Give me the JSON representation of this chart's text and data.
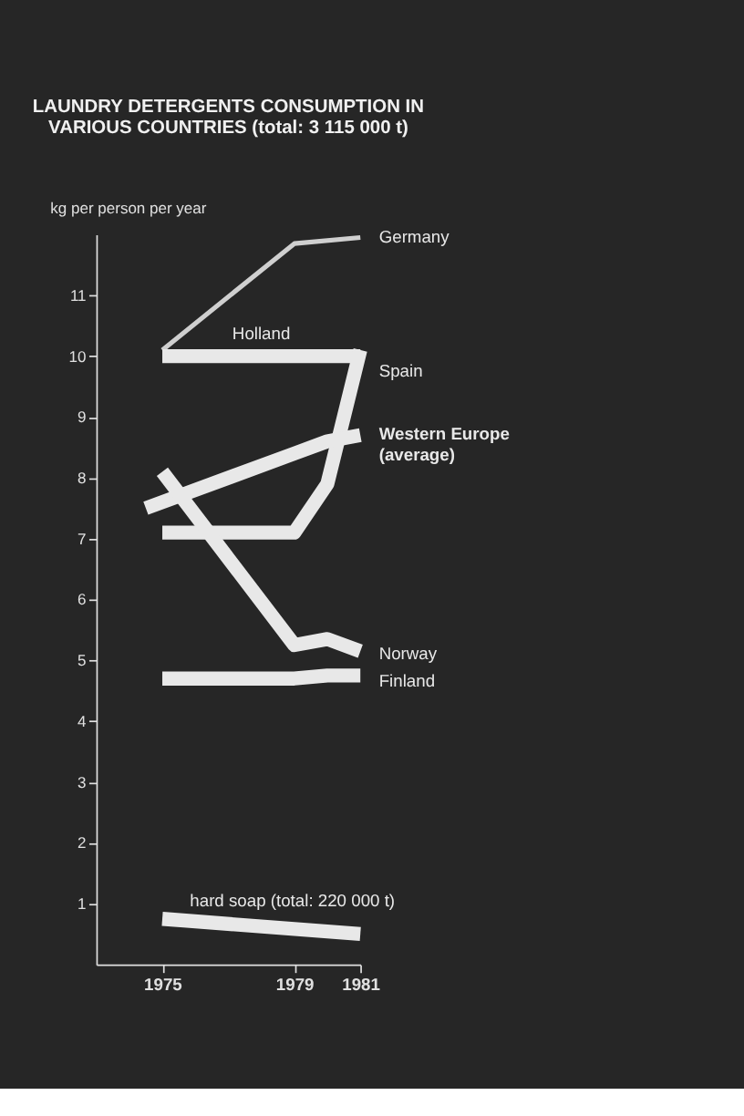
{
  "chart_data": {
    "type": "line",
    "title": [
      "LAUNDRY DETERGENTS CONSUMPTION IN",
      "VARIOUS COUNTRIES (total: 3 115 000 t)"
    ],
    "ylabel": "kg per person per year",
    "xlim": [
      1973,
      1981
    ],
    "xticks": [
      1975,
      1979,
      1981
    ],
    "ylim": [
      0,
      12
    ],
    "yticks": [
      1,
      2,
      3,
      4,
      5,
      6,
      7,
      8,
      9,
      10,
      11
    ],
    "grid": false,
    "marker": "none",
    "line_style": "solid",
    "series": [
      {
        "name": "Germany",
        "color": "#cfcfcf",
        "x": [
          1975,
          1979,
          1981
        ],
        "values": [
          10.1,
          11.85,
          11.95
        ]
      },
      {
        "name": "Holland",
        "color": "#e8e8e8",
        "x": [
          1975,
          1981
        ],
        "values": [
          10.0,
          10.0
        ]
      },
      {
        "name": "Spain",
        "color": "#e8e8e8",
        "x": [
          1975,
          1979,
          1980,
          1981
        ],
        "values": [
          7.1,
          7.1,
          7.9,
          10.1
        ]
      },
      {
        "name": "Western Europe (average)",
        "color": "#e8e8e8",
        "x": [
          1974.5,
          1979,
          1980,
          1981
        ],
        "values": [
          7.5,
          8.4,
          8.6,
          8.7
        ]
      },
      {
        "name": "Norway",
        "color": "#e8e8e8",
        "x": [
          1975,
          1979,
          1980,
          1981
        ],
        "values": [
          8.1,
          5.25,
          5.35,
          5.15
        ]
      },
      {
        "name": "Finland",
        "color": "#e8e8e8",
        "x": [
          1975,
          1979,
          1980,
          1981
        ],
        "values": [
          4.7,
          4.7,
          4.75,
          4.75
        ]
      },
      {
        "name": "hard soap (total: 220 000 t)",
        "color": "#e8e8e8",
        "x": [
          1975,
          1981
        ],
        "values": [
          0.75,
          0.5
        ]
      }
    ]
  }
}
